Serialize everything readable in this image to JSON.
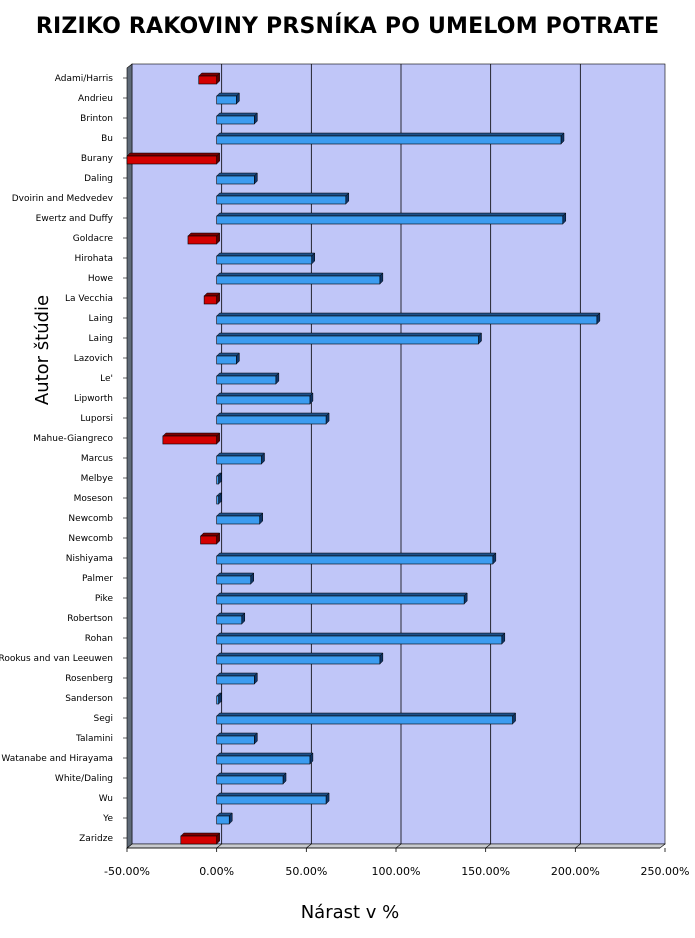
{
  "chart_data": {
    "type": "bar",
    "orientation": "horizontal",
    "title": "RIZIKO RAKOVINY PRSNÍKA PO UMELOM POTRATE",
    "xlabel": "Nárast v %",
    "ylabel": "Autor štúdie",
    "xlim": [
      -50,
      250
    ],
    "x_ticks": [
      "-50.00%",
      "0.00%",
      "50.00%",
      "100.00%",
      "150.00%",
      "200.00%",
      "250.00%"
    ],
    "grid": "vertical",
    "legend": "none",
    "colors": {
      "positive": "#3c9cf0",
      "negative": "#d40000",
      "plot_background": "#c0c6f8"
    },
    "categories": [
      "Adami/Harris",
      "Andrieu",
      "Brinton",
      "Bu",
      "Burany",
      "Daling",
      "Dvoirin and Medvedev",
      "Ewertz and Duffy",
      "Goldacre",
      "Hirohata",
      "Howe",
      "La Vecchia",
      "Laing",
      "Laing",
      "Lazovich",
      "Le'",
      "Lipworth",
      "Luporsi",
      "Mahue-Giangreco",
      "Marcus",
      "Melbye",
      "Moseson",
      "Newcomb",
      "Newcomb",
      "Nishiyama",
      "Palmer",
      "Pike",
      "Robertson",
      "Rohan",
      "Rookus and van Leeuwen",
      "Rosenberg",
      "Sanderson",
      "Segi",
      "Talamini",
      "Watanabe and Hirayama",
      "White/Daling",
      "Wu",
      "Ye",
      "Zaridze"
    ],
    "values": [
      -10,
      11,
      21,
      192,
      -50,
      21,
      72,
      193,
      -16,
      53,
      91,
      -7,
      212,
      146,
      11,
      33,
      52,
      61,
      -30,
      25,
      1,
      1,
      24,
      -9,
      154,
      19,
      138,
      14,
      159,
      91,
      21,
      1,
      165,
      21,
      52,
      37,
      61,
      7,
      -20
    ]
  }
}
